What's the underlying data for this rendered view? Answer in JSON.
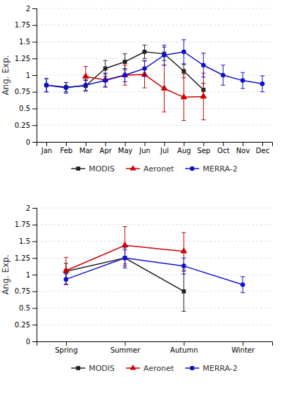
{
  "chart_data": [
    {
      "type": "line",
      "ylabel": "Ang. Exp.",
      "categories": [
        "Jan",
        "Feb",
        "Mar",
        "Apr",
        "May",
        "Jun",
        "Jul",
        "Aug",
        "Sep",
        "Oct",
        "Nov",
        "Dec"
      ],
      "series": [
        {
          "name": "MODIS",
          "color": "#222222",
          "marker": "square",
          "values": [
            0.85,
            0.82,
            0.84,
            1.1,
            1.2,
            1.35,
            1.32,
            1.06,
            0.78,
            null,
            null,
            null
          ],
          "errors": [
            0.1,
            0.07,
            0.08,
            0.12,
            0.12,
            0.1,
            0.1,
            0.1,
            0.1,
            null,
            null,
            null
          ]
        },
        {
          "name": "Aeronet",
          "color": "#cc0000",
          "marker": "triangle",
          "values": [
            null,
            null,
            0.98,
            0.93,
            1.0,
            1.01,
            0.8,
            0.67,
            0.68,
            null,
            null,
            null
          ],
          "errors": [
            null,
            null,
            0.15,
            0.1,
            0.15,
            0.2,
            0.35,
            0.35,
            0.35,
            null,
            null,
            null
          ]
        },
        {
          "name": "MERRA-2",
          "color": "#1010cc",
          "marker": "circle",
          "values": [
            0.85,
            0.81,
            0.85,
            0.92,
            1.0,
            1.1,
            1.3,
            1.35,
            1.15,
            1.0,
            0.92,
            0.87
          ],
          "errors": [
            0.1,
            0.08,
            0.08,
            0.1,
            0.1,
            0.12,
            0.15,
            0.18,
            0.18,
            0.15,
            0.12,
            0.12
          ]
        }
      ],
      "ylim": [
        0,
        2
      ],
      "yticks": [
        0,
        0.25,
        0.5,
        0.75,
        1,
        1.25,
        1.5,
        1.75,
        2
      ],
      "grid": true,
      "legend": "bottom"
    },
    {
      "type": "line",
      "ylabel": "Ang. Exp.",
      "categories": [
        "Spring",
        "Summer",
        "Autumn",
        "Winter"
      ],
      "series": [
        {
          "name": "MODIS",
          "color": "#222222",
          "marker": "square",
          "values": [
            1.05,
            1.25,
            0.75,
            null
          ],
          "errors": [
            0.12,
            0.12,
            0.3,
            null
          ]
        },
        {
          "name": "Aeronet",
          "color": "#cc0000",
          "marker": "triangle",
          "values": [
            1.06,
            1.44,
            1.35,
            null
          ],
          "errors": [
            0.2,
            0.28,
            0.28,
            null
          ]
        },
        {
          "name": "MERRA-2",
          "color": "#1010cc",
          "marker": "circle",
          "values": [
            0.93,
            1.25,
            1.13,
            0.85
          ],
          "errors": [
            0.08,
            0.15,
            0.12,
            0.12
          ]
        }
      ],
      "ylim": [
        0,
        2
      ],
      "yticks": [
        0,
        0.25,
        0.5,
        0.75,
        1,
        1.25,
        1.5,
        1.75,
        2
      ],
      "grid": true,
      "legend": "bottom"
    }
  ]
}
